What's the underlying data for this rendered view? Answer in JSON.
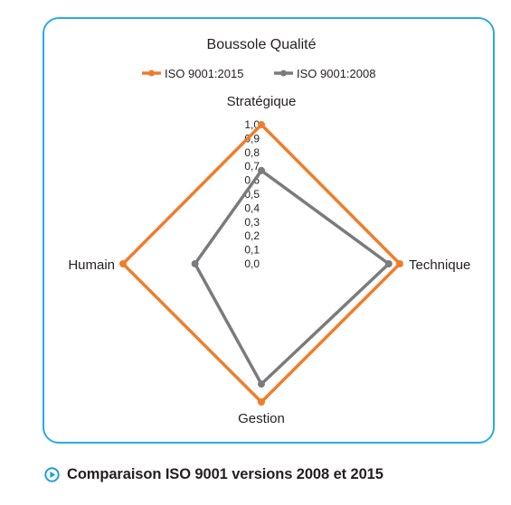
{
  "chart_data": {
    "type": "radar",
    "title": "Boussole Qualité",
    "axes": [
      "Stratégique",
      "Technique",
      "Gestion",
      "Humain"
    ],
    "scale_ticks": [
      "1,0",
      "0,9",
      "0,8",
      "0,7",
      "0,6",
      "0,5",
      "0,4",
      "0,3",
      "0,2",
      "0,1",
      "0,0"
    ],
    "range": [
      0,
      1
    ],
    "legend_position": "top",
    "grid": false,
    "series": [
      {
        "name": "ISO 9001:2015",
        "color": "#ef7d2d",
        "values": [
          1.0,
          1.0,
          1.0,
          1.0
        ]
      },
      {
        "name": "ISO 9001:2008",
        "color": "#7b7b7d",
        "values": [
          0.67,
          0.92,
          0.87,
          0.48
        ]
      }
    ]
  },
  "caption": {
    "text": "Comparaison ISO 9001 versions 2008 et 2015",
    "icon": "play-circle-icon",
    "icon_color": "#1e9fd9"
  },
  "colors": {
    "frame_border": "#29abe2"
  }
}
